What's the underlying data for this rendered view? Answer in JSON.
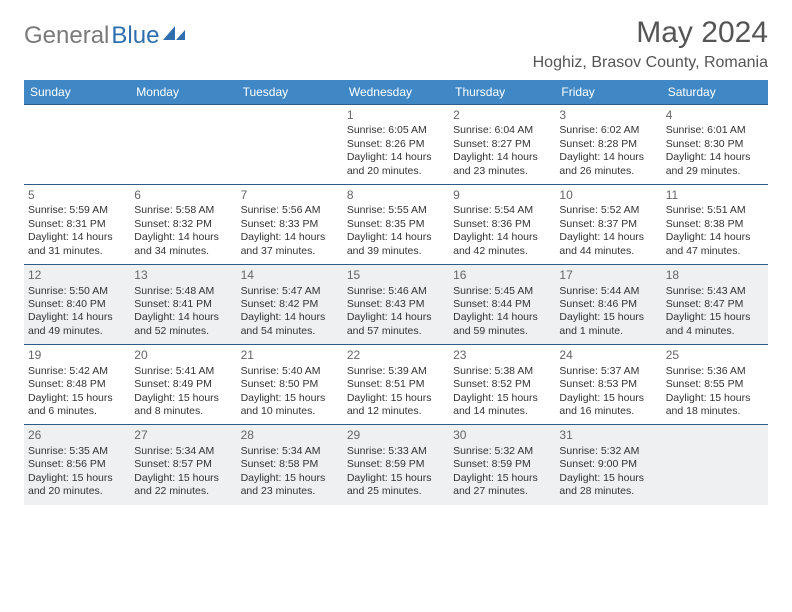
{
  "logo": {
    "gray": "General",
    "blue": "Blue"
  },
  "title": "May 2024",
  "location": "Hoghiz, Brasov County, Romania",
  "colors": {
    "header_bg": "#3f88c5",
    "header_fg": "#ffffff",
    "rule": "#2c5c88",
    "shade": "#eef0f2",
    "text": "#333333",
    "logo_gray": "#7a7a7a",
    "logo_blue": "#2f6fae"
  },
  "weekdays": [
    "Sunday",
    "Monday",
    "Tuesday",
    "Wednesday",
    "Thursday",
    "Friday",
    "Saturday"
  ],
  "weeks": [
    {
      "shaded": false,
      "days": [
        null,
        null,
        null,
        {
          "n": "1",
          "sr": "6:05 AM",
          "ss": "8:26 PM",
          "dl": "14 hours and 20 minutes."
        },
        {
          "n": "2",
          "sr": "6:04 AM",
          "ss": "8:27 PM",
          "dl": "14 hours and 23 minutes."
        },
        {
          "n": "3",
          "sr": "6:02 AM",
          "ss": "8:28 PM",
          "dl": "14 hours and 26 minutes."
        },
        {
          "n": "4",
          "sr": "6:01 AM",
          "ss": "8:30 PM",
          "dl": "14 hours and 29 minutes."
        }
      ]
    },
    {
      "shaded": false,
      "days": [
        {
          "n": "5",
          "sr": "5:59 AM",
          "ss": "8:31 PM",
          "dl": "14 hours and 31 minutes."
        },
        {
          "n": "6",
          "sr": "5:58 AM",
          "ss": "8:32 PM",
          "dl": "14 hours and 34 minutes."
        },
        {
          "n": "7",
          "sr": "5:56 AM",
          "ss": "8:33 PM",
          "dl": "14 hours and 37 minutes."
        },
        {
          "n": "8",
          "sr": "5:55 AM",
          "ss": "8:35 PM",
          "dl": "14 hours and 39 minutes."
        },
        {
          "n": "9",
          "sr": "5:54 AM",
          "ss": "8:36 PM",
          "dl": "14 hours and 42 minutes."
        },
        {
          "n": "10",
          "sr": "5:52 AM",
          "ss": "8:37 PM",
          "dl": "14 hours and 44 minutes."
        },
        {
          "n": "11",
          "sr": "5:51 AM",
          "ss": "8:38 PM",
          "dl": "14 hours and 47 minutes."
        }
      ]
    },
    {
      "shaded": true,
      "days": [
        {
          "n": "12",
          "sr": "5:50 AM",
          "ss": "8:40 PM",
          "dl": "14 hours and 49 minutes."
        },
        {
          "n": "13",
          "sr": "5:48 AM",
          "ss": "8:41 PM",
          "dl": "14 hours and 52 minutes."
        },
        {
          "n": "14",
          "sr": "5:47 AM",
          "ss": "8:42 PM",
          "dl": "14 hours and 54 minutes."
        },
        {
          "n": "15",
          "sr": "5:46 AM",
          "ss": "8:43 PM",
          "dl": "14 hours and 57 minutes."
        },
        {
          "n": "16",
          "sr": "5:45 AM",
          "ss": "8:44 PM",
          "dl": "14 hours and 59 minutes."
        },
        {
          "n": "17",
          "sr": "5:44 AM",
          "ss": "8:46 PM",
          "dl": "15 hours and 1 minute."
        },
        {
          "n": "18",
          "sr": "5:43 AM",
          "ss": "8:47 PM",
          "dl": "15 hours and 4 minutes."
        }
      ]
    },
    {
      "shaded": false,
      "days": [
        {
          "n": "19",
          "sr": "5:42 AM",
          "ss": "8:48 PM",
          "dl": "15 hours and 6 minutes."
        },
        {
          "n": "20",
          "sr": "5:41 AM",
          "ss": "8:49 PM",
          "dl": "15 hours and 8 minutes."
        },
        {
          "n": "21",
          "sr": "5:40 AM",
          "ss": "8:50 PM",
          "dl": "15 hours and 10 minutes."
        },
        {
          "n": "22",
          "sr": "5:39 AM",
          "ss": "8:51 PM",
          "dl": "15 hours and 12 minutes."
        },
        {
          "n": "23",
          "sr": "5:38 AM",
          "ss": "8:52 PM",
          "dl": "15 hours and 14 minutes."
        },
        {
          "n": "24",
          "sr": "5:37 AM",
          "ss": "8:53 PM",
          "dl": "15 hours and 16 minutes."
        },
        {
          "n": "25",
          "sr": "5:36 AM",
          "ss": "8:55 PM",
          "dl": "15 hours and 18 minutes."
        }
      ]
    },
    {
      "shaded": true,
      "days": [
        {
          "n": "26",
          "sr": "5:35 AM",
          "ss": "8:56 PM",
          "dl": "15 hours and 20 minutes."
        },
        {
          "n": "27",
          "sr": "5:34 AM",
          "ss": "8:57 PM",
          "dl": "15 hours and 22 minutes."
        },
        {
          "n": "28",
          "sr": "5:34 AM",
          "ss": "8:58 PM",
          "dl": "15 hours and 23 minutes."
        },
        {
          "n": "29",
          "sr": "5:33 AM",
          "ss": "8:59 PM",
          "dl": "15 hours and 25 minutes."
        },
        {
          "n": "30",
          "sr": "5:32 AM",
          "ss": "8:59 PM",
          "dl": "15 hours and 27 minutes."
        },
        {
          "n": "31",
          "sr": "5:32 AM",
          "ss": "9:00 PM",
          "dl": "15 hours and 28 minutes."
        },
        null
      ]
    }
  ],
  "labels": {
    "sunrise": "Sunrise:",
    "sunset": "Sunset:",
    "daylight": "Daylight:"
  }
}
